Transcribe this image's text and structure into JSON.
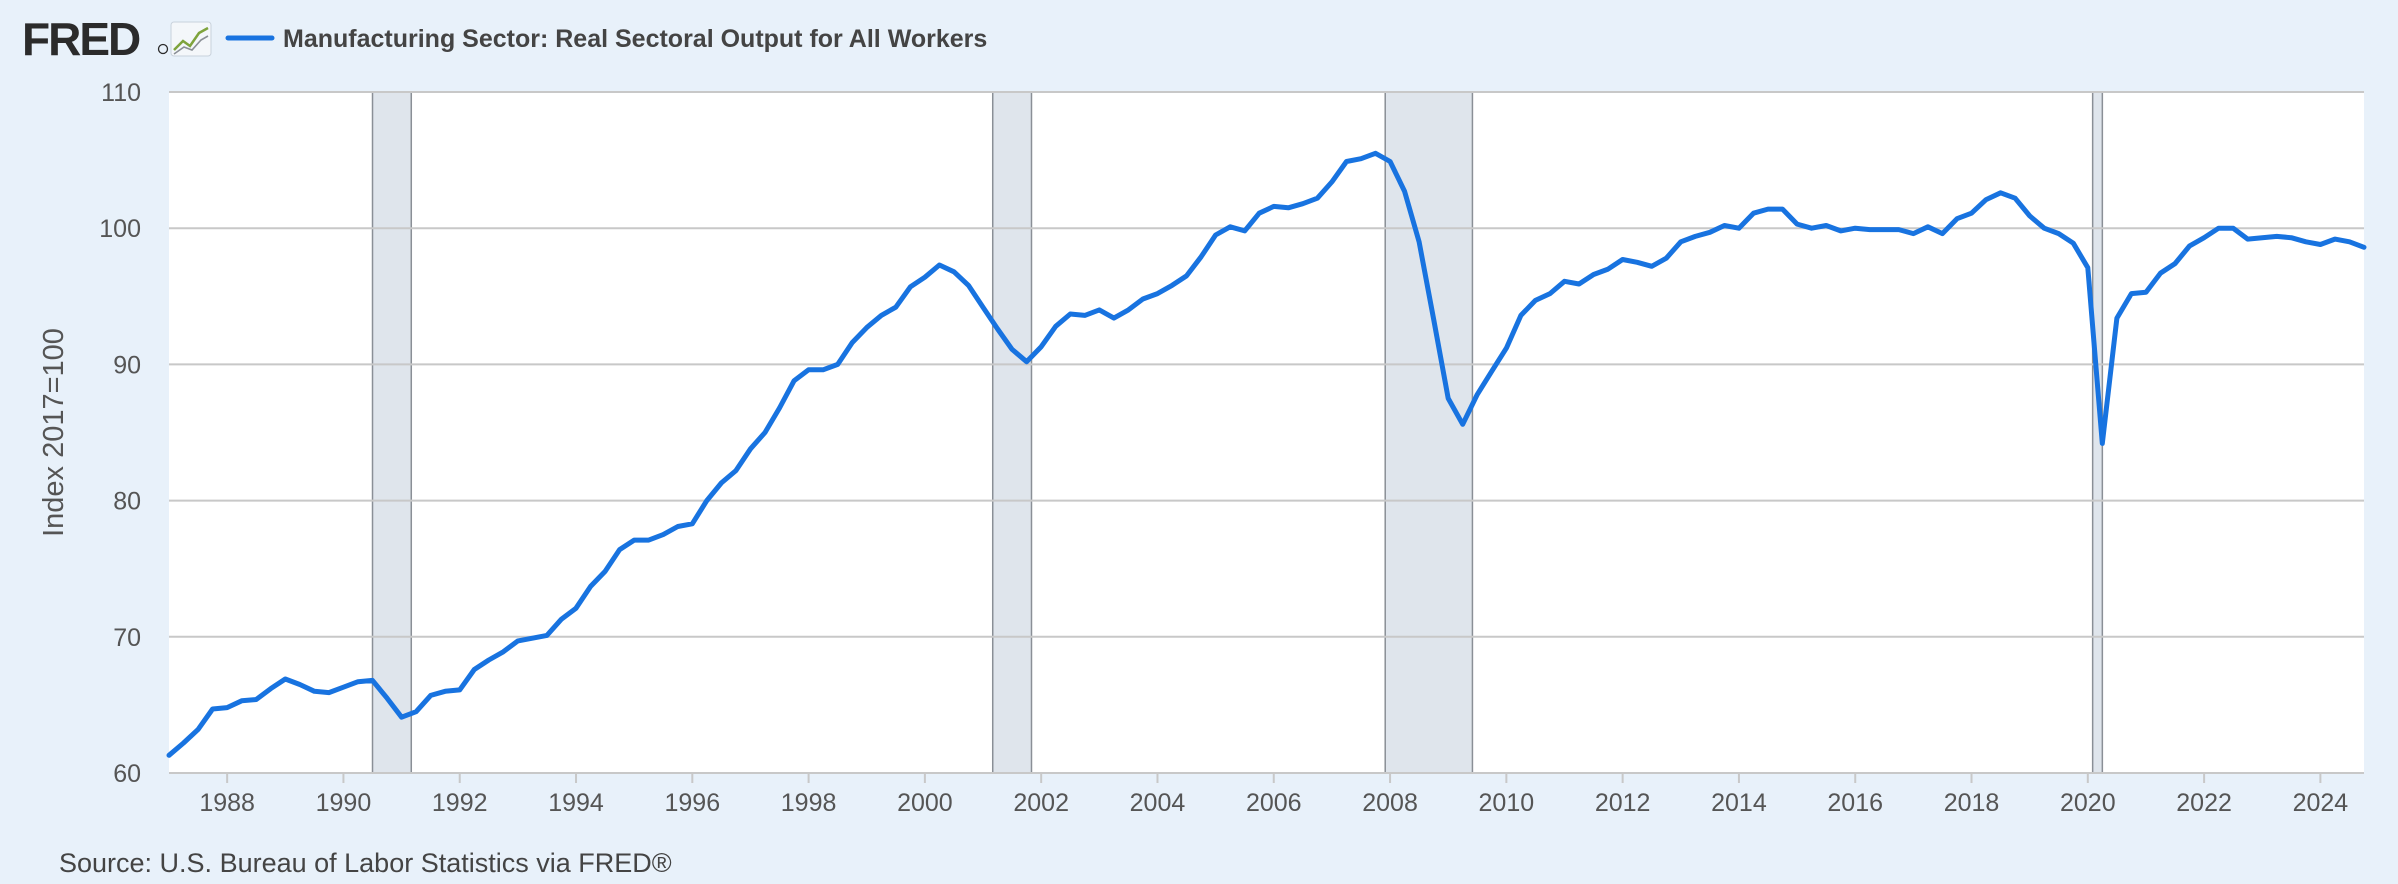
{
  "brand": {
    "logo_text": "FRED",
    "logo_mark": "registered-mark"
  },
  "icons": {
    "logo_chart": "line-chart-icon"
  },
  "source_text": "Source: U.S. Bureau of Labor Statistics via FRED®",
  "colors": {
    "series": "#1873e0",
    "recession": "#dfe5ec",
    "recession_edge": "#8a8f96",
    "grid": "#c8c8c8",
    "plot_bg": "#ffffff",
    "page_bg": "#e8f1fa"
  },
  "chart_data": {
    "type": "line",
    "title": "",
    "xlabel": "",
    "ylabel": "Index 2017=100",
    "x_range": [
      "1987-01-01",
      "2024-10-01"
    ],
    "ylim": [
      60,
      110
    ],
    "y_ticks": [
      60,
      70,
      80,
      90,
      100,
      110
    ],
    "x_ticks": [
      "1988",
      "1990",
      "1992",
      "1994",
      "1996",
      "1998",
      "2000",
      "2002",
      "2004",
      "2006",
      "2008",
      "2010",
      "2012",
      "2014",
      "2016",
      "2018",
      "2020",
      "2022",
      "2024"
    ],
    "grid": "horizontal",
    "legend_position": "top-left",
    "recessions": [
      [
        "1990-07-01",
        "1991-03-01"
      ],
      [
        "2001-03-01",
        "2001-11-01"
      ],
      [
        "2007-12-01",
        "2009-06-01"
      ],
      [
        "2020-02-01",
        "2020-04-01"
      ]
    ],
    "series": [
      {
        "name": "Manufacturing Sector: Real Sectoral Output for All Workers",
        "frequency": "quarterly",
        "start": "1987-01-01",
        "values": [
          61.3,
          62.2,
          63.2,
          64.7,
          64.8,
          65.3,
          65.4,
          66.2,
          66.9,
          66.5,
          66.0,
          65.9,
          66.3,
          66.7,
          66.8,
          65.5,
          64.1,
          64.5,
          65.7,
          66.0,
          66.1,
          67.6,
          68.3,
          68.9,
          69.7,
          69.9,
          70.1,
          71.3,
          72.1,
          73.7,
          74.8,
          76.4,
          77.1,
          77.1,
          77.5,
          78.1,
          78.3,
          80.0,
          81.3,
          82.2,
          83.8,
          85.0,
          86.8,
          88.8,
          89.6,
          89.6,
          90.0,
          91.6,
          92.7,
          93.6,
          94.2,
          95.7,
          96.4,
          97.3,
          96.8,
          95.8,
          94.2,
          92.6,
          91.1,
          90.2,
          91.3,
          92.8,
          93.7,
          93.6,
          94.0,
          93.4,
          94.0,
          94.8,
          95.2,
          95.8,
          96.5,
          97.9,
          99.5,
          100.1,
          99.8,
          101.1,
          101.6,
          101.5,
          101.8,
          102.2,
          103.4,
          104.9,
          105.1,
          105.5,
          104.9,
          102.7,
          99.0,
          93.3,
          87.5,
          85.6,
          87.8,
          89.5,
          91.2,
          93.6,
          94.7,
          95.2,
          96.1,
          95.9,
          96.6,
          97.0,
          97.7,
          97.5,
          97.2,
          97.8,
          99.0,
          99.4,
          99.7,
          100.2,
          100.0,
          101.1,
          101.4,
          101.4,
          100.3,
          100.0,
          100.2,
          99.8,
          100.0,
          99.9,
          99.9,
          99.9,
          99.6,
          100.1,
          99.6,
          100.7,
          101.1,
          102.1,
          102.6,
          102.2,
          100.9,
          100.0,
          99.6,
          98.9,
          97.1,
          84.2,
          93.4,
          95.2,
          95.3,
          96.7,
          97.4,
          98.7,
          99.3,
          100.0,
          100.0,
          99.2,
          99.3,
          99.4,
          99.3,
          99.0,
          98.8,
          99.2,
          99.0,
          98.6
        ]
      }
    ]
  }
}
